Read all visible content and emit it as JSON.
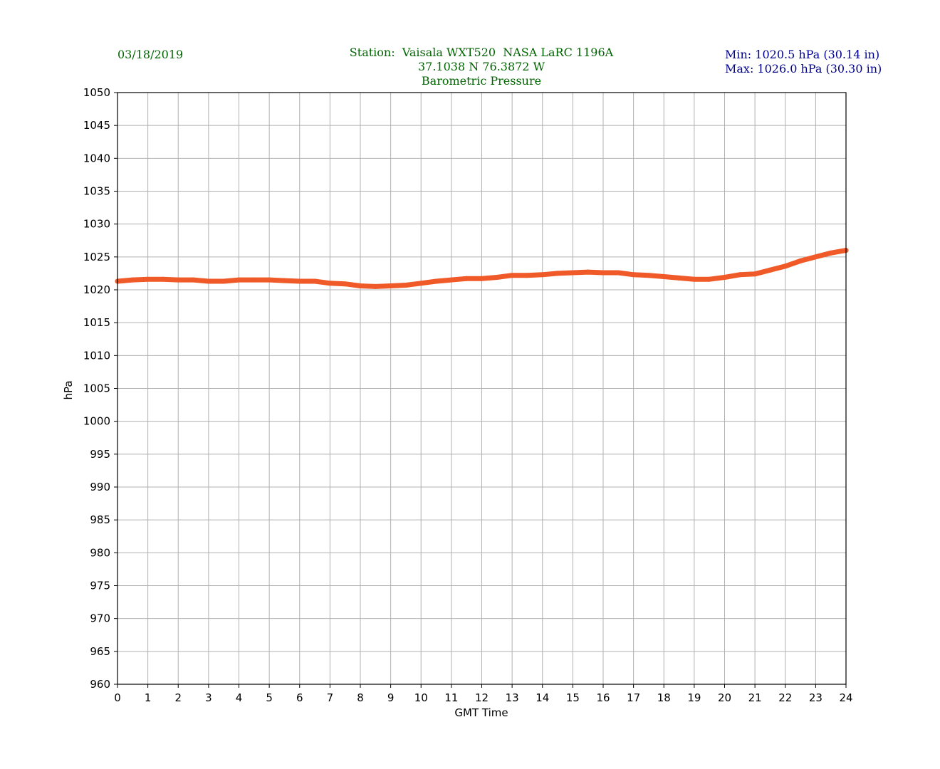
{
  "header": {
    "date": "03/18/2019",
    "station_line": "Station:  Vaisala WXT520  NASA LaRC 1196A",
    "coords_line": "37.1038 N 76.3872 W",
    "title_line": "Barometric Pressure",
    "min_line": "Min: 1020.5 hPa (30.14 in)",
    "max_line": "Max: 1026.0 hPa (30.30 in)"
  },
  "colors": {
    "header_green": "#006400",
    "header_blue": "#00008b",
    "series": "#f05a28",
    "grid": "#b0b0b0"
  },
  "chart_data": {
    "type": "line",
    "title": "Barometric Pressure",
    "xlabel": "GMT Time",
    "ylabel": "hPa",
    "xlim": [
      0,
      24
    ],
    "ylim": [
      960,
      1050
    ],
    "x_ticks": [
      0,
      1,
      2,
      3,
      4,
      5,
      6,
      7,
      8,
      9,
      10,
      11,
      12,
      13,
      14,
      15,
      16,
      17,
      18,
      19,
      20,
      21,
      22,
      23,
      24
    ],
    "y_ticks": [
      960,
      965,
      970,
      975,
      980,
      985,
      990,
      995,
      1000,
      1005,
      1010,
      1015,
      1020,
      1025,
      1030,
      1035,
      1040,
      1045,
      1050
    ],
    "grid": true,
    "series": [
      {
        "x": [
          0,
          0.5,
          1,
          1.5,
          2,
          2.5,
          3,
          3.5,
          4,
          4.5,
          5,
          5.5,
          6,
          6.5,
          7,
          7.5,
          8,
          8.5,
          9,
          9.5,
          10,
          10.5,
          11,
          11.5,
          12,
          12.5,
          13,
          13.5,
          14,
          14.5,
          15,
          15.5,
          16,
          16.5,
          17,
          17.5,
          18,
          18.5,
          19,
          19.5,
          20,
          20.5,
          21,
          21.5,
          22,
          22.5,
          23,
          23.5,
          24
        ],
        "values": [
          1021.3,
          1021.5,
          1021.6,
          1021.6,
          1021.5,
          1021.5,
          1021.3,
          1021.3,
          1021.5,
          1021.5,
          1021.5,
          1021.4,
          1021.3,
          1021.3,
          1021.0,
          1020.9,
          1020.6,
          1020.5,
          1020.6,
          1020.7,
          1021.0,
          1021.3,
          1021.5,
          1021.7,
          1021.7,
          1021.9,
          1022.2,
          1022.2,
          1022.3,
          1022.5,
          1022.6,
          1022.7,
          1022.6,
          1022.6,
          1022.3,
          1022.2,
          1022.0,
          1021.8,
          1021.6,
          1021.6,
          1021.9,
          1022.3,
          1022.4,
          1023.0,
          1023.6,
          1024.4,
          1025.0,
          1025.6,
          1026.0
        ]
      }
    ]
  }
}
